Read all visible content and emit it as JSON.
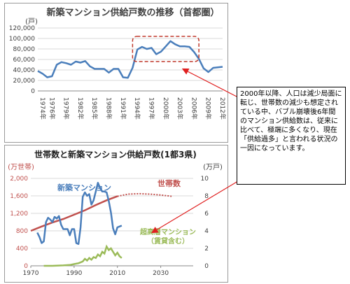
{
  "chart_data": [
    {
      "type": "line",
      "title": "新築マンション供給戸数の推移（首都圏）",
      "ylabel_unit": "(戸)",
      "ylim": [
        0,
        120000
      ],
      "yticks": [
        "0",
        "20,000",
        "40,000",
        "60,000",
        "80,000",
        "100,000",
        "120,000"
      ],
      "xticks": [
        "1974年",
        "1976年",
        "1979年",
        "1982年",
        "1985年",
        "1988年",
        "1991年",
        "1994年",
        "1997年",
        "2000年",
        "2003年",
        "2006年",
        "2009年",
        "2012年"
      ],
      "x": [
        1973,
        1974,
        1975,
        1976,
        1977,
        1978,
        1979,
        1980,
        1981,
        1982,
        1983,
        1984,
        1985,
        1986,
        1987,
        1988,
        1989,
        1990,
        1991,
        1992,
        1993,
        1994,
        1995,
        1996,
        1997,
        1998,
        1999,
        2000,
        2001,
        2002,
        2003,
        2004,
        2005,
        2006,
        2007,
        2008,
        2009,
        2010,
        2011,
        2012
      ],
      "series": [
        {
          "values": [
            38000,
            33000,
            26000,
            28000,
            50000,
            55000,
            53000,
            50000,
            56000,
            54000,
            57000,
            47000,
            42000,
            42000,
            42000,
            35000,
            42000,
            42000,
            26000,
            25000,
            44000,
            79000,
            84000,
            80000,
            82000,
            70000,
            75000,
            85000,
            95000,
            89000,
            85000,
            85000,
            84000,
            74000,
            61000,
            43000,
            36000,
            44000,
            45000,
            46000
          ],
          "color": "#4a7ebb"
        }
      ],
      "highlight_box": {
        "x_range": [
          1993,
          2007
        ],
        "y_range": [
          56000,
          104000
        ],
        "color": "#c0392b"
      },
      "grid": true
    },
    {
      "type": "line",
      "title": "世帯数と新築マンション供給戸数(1都3県)",
      "left_axis_label": "(万世帯)",
      "right_axis_label": "(万戸)",
      "ylim_left": [
        0,
        2000
      ],
      "ylim_right": [
        0,
        10
      ],
      "yticks_left": [
        "0",
        "400",
        "800",
        "1,200",
        "1,600",
        "2,000"
      ],
      "yticks_right": [
        "0",
        "2",
        "4",
        "6",
        "8",
        "10"
      ],
      "xticks": [
        "1970",
        "1990",
        "2010",
        "2030"
      ],
      "xlim": [
        1970,
        2045
      ],
      "series": [
        {
          "name": "新築マンション",
          "axis": "right",
          "color": "#4a7ebb",
          "x": [
            1973,
            1974,
            1975,
            1976,
            1977,
            1978,
            1979,
            1980,
            1981,
            1982,
            1983,
            1984,
            1985,
            1986,
            1987,
            1988,
            1989,
            1990,
            1991,
            1992,
            1993,
            1994,
            1995,
            1996,
            1997,
            1998,
            1999,
            2000,
            2001,
            2002,
            2003,
            2004,
            2005,
            2006,
            2007,
            2008,
            2009,
            2010,
            2011,
            2012
          ],
          "values": [
            3.8,
            3.3,
            2.6,
            2.8,
            5.0,
            5.5,
            5.3,
            5.0,
            5.6,
            5.4,
            5.7,
            4.7,
            4.2,
            4.2,
            4.2,
            3.5,
            4.2,
            4.2,
            2.6,
            2.5,
            4.4,
            7.9,
            8.4,
            8.0,
            8.2,
            7.0,
            7.5,
            8.5,
            9.5,
            8.9,
            8.5,
            8.5,
            8.4,
            7.4,
            6.1,
            4.3,
            3.6,
            4.4,
            4.5,
            4.6
          ]
        },
        {
          "name": "世帯数",
          "axis": "left",
          "color": "#c0504d",
          "x": [
            1970,
            1975,
            1980,
            1985,
            1990,
            1995,
            2000,
            2005,
            2010
          ],
          "values": [
            800,
            900,
            990,
            1070,
            1170,
            1270,
            1390,
            1500,
            1590
          ],
          "projection": {
            "x": [
              2010,
              2015,
              2020,
              2025,
              2030,
              2035
            ],
            "values": [
              1590,
              1640,
              1650,
              1640,
              1620,
              1590
            ]
          }
        },
        {
          "name": "超高層マンション（賃貸含む）",
          "axis": "right",
          "color": "#9bbb59",
          "x": [
            1976,
            1980,
            1985,
            1988,
            1990,
            1992,
            1994,
            1995,
            1996,
            1997,
            1998,
            1999,
            2000,
            2001,
            2002,
            2003,
            2004,
            2005,
            2006,
            2007,
            2008,
            2009,
            2010,
            2011,
            2012
          ],
          "values": [
            0,
            0,
            0.05,
            0.1,
            0.2,
            0.3,
            0.5,
            0.8,
            0.6,
            0.9,
            0.7,
            1.0,
            0.9,
            1.3,
            1.1,
            1.6,
            1.4,
            2.2,
            1.8,
            2.0,
            1.6,
            1.2,
            1.5,
            1.1,
            0.9
          ]
        }
      ],
      "grid": true
    }
  ],
  "note": {
    "text": "2000年以降、人口は減少局面に転じ、世帯数の減少も想定されている中、バブル崩壊後6年間のマンション供給数は、従来に比べて、極端に多くなり、現在「供給過多」と言われる状況の一因になっています。"
  },
  "colors": {
    "panel_border": "#9a9a9a",
    "grid": "#d9d9d9",
    "arrow": "#e02020"
  }
}
